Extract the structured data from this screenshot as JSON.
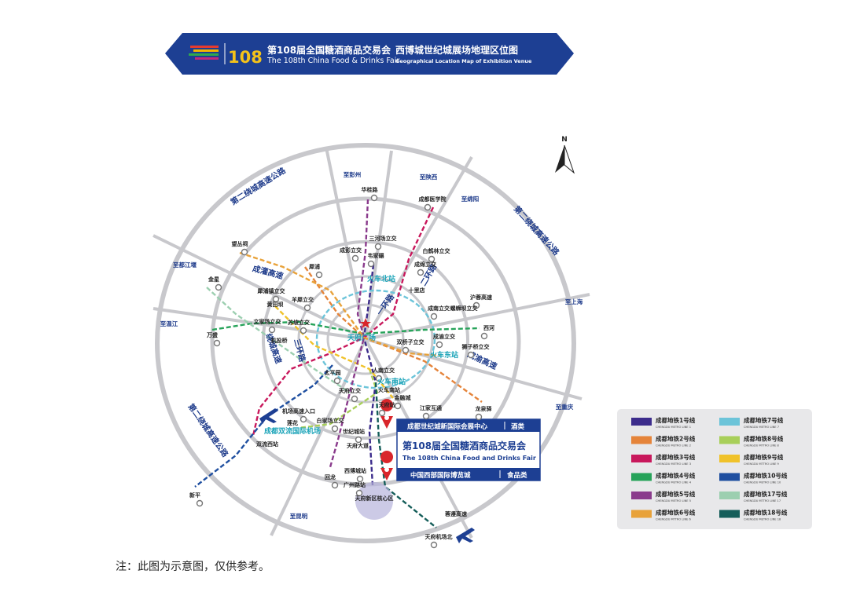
{
  "header": {
    "logo": "108",
    "title": "第108届全国糖酒商品交易会",
    "title_en": "The 108th China Food & Drinks Fair",
    "subtitle": "西博城世纪城展场地理区位图",
    "subtitle_en": "Geographical Location Map of Exhibition Venue"
  },
  "map": {
    "north": "N",
    "roads": [
      "第二绕城高速公路",
      "第二绕城高速公路",
      "第二绕城高速公路",
      "绕城高速",
      "三环路",
      "二环路",
      "一环路",
      "成灌高速",
      "成渝高速"
    ],
    "directions": [
      "至彭州",
      "至陕西",
      "至绵阳",
      "至都江堰",
      "至上海",
      "至温江",
      "至重庆",
      "至昆明"
    ],
    "stations": [
      "华桂路",
      "成都医学院",
      "三河场立交",
      "成彭立交",
      "韦家碾",
      "白鹤林立交",
      "成绵立交",
      "犀浦",
      "望丛祠",
      "犀浦镇立交",
      "羊犀立交",
      "十里店",
      "沪蓉高速",
      "成南立交",
      "螺蛳坝立交",
      "金星",
      "黄田坝",
      "万盛",
      "文家场立交",
      "苏坡立交",
      "机投桥",
      "西河",
      "双桥子立交",
      "成渝立交",
      "狮子桥立交",
      "人南立交",
      "太平园",
      "天府立交",
      "火车南站",
      "金融城",
      "天府站",
      "江家互通",
      "龙泉驿",
      "机场高速入口",
      "白家场立交",
      "双流西站",
      "世纪城站",
      "天府大道",
      "西博城站",
      "回龙",
      "广州路站",
      "天府新区核心区",
      "蓉遵高速",
      "新平",
      "天府机场北",
      "莲花"
    ],
    "hubs": [
      "火车北站",
      "天府广场",
      "火车东站",
      "火车南站",
      "成都双流国际机场"
    ]
  },
  "venue": {
    "name1": "成都世纪城新国际会展中心",
    "category1": "酒类",
    "title": "第108届全国糖酒商品交易会",
    "title_en": "The 108th China Food and Drinks Fair",
    "name2": "中国西部国际博览城",
    "category2": "食品类"
  },
  "legend": [
    {
      "name": "成都地铁1号线",
      "name_en": "CHENGDU METRO LINE 1",
      "color": "#3c2c8c"
    },
    {
      "name": "成都地铁7号线",
      "name_en": "CHENGDU METRO LINE 7",
      "color": "#6cc4d9"
    },
    {
      "name": "成都地铁2号线",
      "name_en": "CHENGDU METRO LINE 2",
      "color": "#e5843a"
    },
    {
      "name": "成都地铁8号线",
      "name_en": "CHENGDU MTTRO LINE 8",
      "color": "#a8cf5a"
    },
    {
      "name": "成都地铁3号线",
      "name_en": "CHENGDU METRO LINE 3",
      "color": "#c8185c"
    },
    {
      "name": "成都地铁9号线",
      "name_en": "CHENGDU MTTRO LINE 9",
      "color": "#f0c22a"
    },
    {
      "name": "成都地铁4号线",
      "name_en": "CHENGDU METRO LINE 4",
      "color": "#27a35a"
    },
    {
      "name": "成都地铁10号线",
      "name_en": "CHENGDU METRO LINE 10",
      "color": "#1f4fa0"
    },
    {
      "name": "成都地铁5号线",
      "name_en": "CHENGDU METRO LINE 5",
      "color": "#8a3b8c"
    },
    {
      "name": "成都地铁17号线",
      "name_en": "CHENGDU MTTRO LINE 17",
      "color": "#9ccfb0"
    },
    {
      "name": "成都地铁6号线",
      "name_en": "CHENGDU MTTRO LINE 6",
      "color": "#e8a23a"
    },
    {
      "name": "成都地铁18号线",
      "name_en": "CHENGDU METRO LINE 18",
      "color": "#155e5a"
    }
  ],
  "note": "注：此图为示意图，仅供参考。"
}
